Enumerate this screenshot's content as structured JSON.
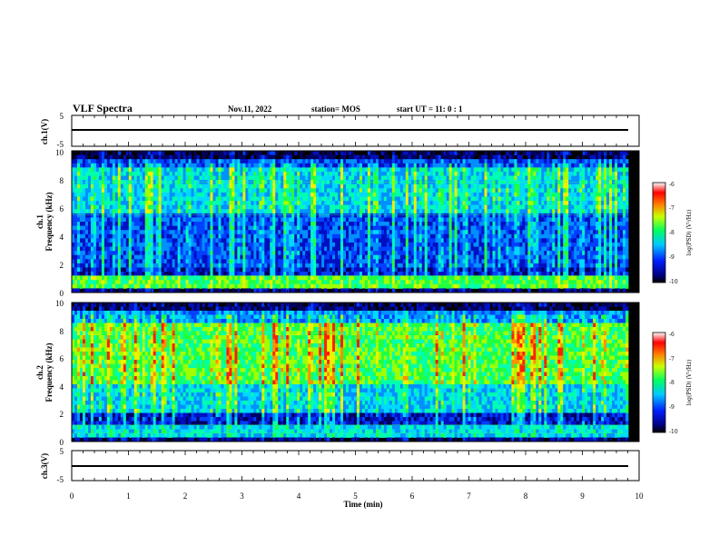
{
  "header": {
    "title": "VLF Spectra",
    "date": "Nov.11, 2022",
    "station": "station= MOS",
    "start": "start  UT =   11: 0  : 1"
  },
  "chart_data": [
    {
      "type": "line",
      "panel": "ch1-waveform",
      "ylabel": "ch.1(V)",
      "ylim": [
        -5,
        5
      ],
      "yticks": [
        "5",
        "-5"
      ],
      "x": [
        0,
        9.8
      ],
      "values": [
        0,
        0
      ]
    },
    {
      "type": "heatmap",
      "panel": "ch1-spectrogram",
      "ylabel": "ch.1\nFrequency  (kHz)",
      "ylim": [
        0,
        10
      ],
      "yticks": [
        "0",
        "2",
        "4",
        "6",
        "8",
        "10"
      ],
      "xlim": [
        0,
        10
      ],
      "colorbar": {
        "label": "log(PSD) (V²/Hz)",
        "range": [
          -10,
          -6
        ],
        "ticks": [
          "-6",
          "-7",
          "-8",
          "-9",
          "-10"
        ]
      }
    },
    {
      "type": "heatmap",
      "panel": "ch2-spectrogram",
      "ylabel": "ch.2\nFrequency  (kHz)",
      "ylim": [
        0,
        10
      ],
      "yticks": [
        "0",
        "2",
        "4",
        "6",
        "8",
        "10"
      ],
      "xlim": [
        0,
        10
      ],
      "colorbar": {
        "label": "log(PSD) (V²/Hz)",
        "range": [
          -10,
          -6
        ],
        "ticks": [
          "-6",
          "-7",
          "-8",
          "-9",
          "-10"
        ]
      }
    },
    {
      "type": "line",
      "panel": "ch3-waveform",
      "ylabel": "ch.3(V)",
      "ylim": [
        -5,
        5
      ],
      "yticks": [
        "5",
        "-5"
      ],
      "x": [
        0,
        9.8
      ],
      "values": [
        0,
        0
      ]
    }
  ],
  "xaxis": {
    "label": "Time  (min)",
    "ticks": [
      "0",
      "1",
      "2",
      "3",
      "4",
      "5",
      "6",
      "7",
      "8",
      "9",
      "10"
    ],
    "range": [
      0,
      10
    ]
  },
  "labels": {
    "ch1_v": "ch.1(V)",
    "ch1_freq_ch": "ch.1",
    "ch1_freq": "Frequency  (kHz)",
    "ch2_freq_ch": "ch.2",
    "ch2_freq": "Frequency  (kHz)",
    "ch3_v": "ch.3(V)",
    "cb_label": "log(PSD) (V²/Hz)"
  }
}
